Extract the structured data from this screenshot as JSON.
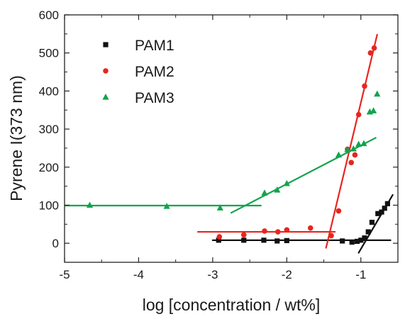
{
  "chart_data": {
    "type": "scatter",
    "title": "",
    "xlabel": "log [concentration / wt%]",
    "ylabel": "Pyrene I(373 nm)",
    "xlim": [
      -5,
      -0.5
    ],
    "ylim": [
      -50,
      600
    ],
    "x_ticks": [
      -5,
      -4,
      -3,
      -2,
      -1
    ],
    "y_ticks": [
      0,
      100,
      200,
      300,
      400,
      500,
      600
    ],
    "x_tick_labels": [
      "-5",
      "-4",
      "-3",
      "-2",
      "-1"
    ],
    "y_tick_labels": [
      "0",
      "100",
      "200",
      "300",
      "400",
      "500",
      "600"
    ],
    "grid": false,
    "legend_position": "top-left",
    "series": [
      {
        "name": "PAM1",
        "color": "#111111",
        "marker": "square",
        "points": [
          [
            -2.92,
            8
          ],
          [
            -2.58,
            8
          ],
          [
            -2.31,
            8
          ],
          [
            -2.13,
            6
          ],
          [
            -2.0,
            7
          ],
          [
            -1.25,
            6
          ],
          [
            -1.12,
            3
          ],
          [
            -1.05,
            5
          ],
          [
            -1.0,
            8
          ],
          [
            -0.95,
            14
          ],
          [
            -0.9,
            30
          ],
          [
            -0.85,
            55
          ],
          [
            -0.77,
            78
          ],
          [
            -0.72,
            82
          ],
          [
            -0.68,
            92
          ],
          [
            -0.64,
            104
          ]
        ],
        "fit_lines": [
          {
            "x": [
              -3.0,
              -0.6
            ],
            "y": [
              8,
              8
            ]
          },
          {
            "x": [
              -1.03,
              -0.57
            ],
            "y": [
              -25,
              127
            ]
          }
        ]
      },
      {
        "name": "PAM2",
        "color": "#e8251f",
        "marker": "circle",
        "points": [
          [
            -2.91,
            17
          ],
          [
            -2.58,
            22
          ],
          [
            -2.3,
            32
          ],
          [
            -2.12,
            30
          ],
          [
            -2.0,
            35
          ],
          [
            -1.68,
            40
          ],
          [
            -1.4,
            20
          ],
          [
            -1.3,
            85
          ],
          [
            -1.18,
            247
          ],
          [
            -1.13,
            212
          ],
          [
            -1.08,
            232
          ],
          [
            -1.03,
            338
          ],
          [
            -0.95,
            413
          ],
          [
            -0.87,
            500
          ],
          [
            -0.82,
            513
          ]
        ],
        "fit_lines": [
          {
            "x": [
              -3.2,
              -1.35
            ],
            "y": [
              30,
              30
            ]
          },
          {
            "x": [
              -1.47,
              -0.78
            ],
            "y": [
              -12,
              548
            ]
          }
        ]
      },
      {
        "name": "PAM3",
        "color": "#13a34d",
        "marker": "triangle",
        "points": [
          [
            -4.66,
            100
          ],
          [
            -3.62,
            97
          ],
          [
            -2.9,
            93
          ],
          [
            -2.3,
            132
          ],
          [
            -2.13,
            140
          ],
          [
            -2.0,
            157
          ],
          [
            -1.3,
            232
          ],
          [
            -1.18,
            246
          ],
          [
            -1.1,
            248
          ],
          [
            -1.03,
            260
          ],
          [
            -0.96,
            262
          ],
          [
            -0.88,
            345
          ],
          [
            -0.83,
            348
          ],
          [
            -0.78,
            392
          ]
        ],
        "fit_lines": [
          {
            "x": [
              -5.0,
              -2.35
            ],
            "y": [
              99,
              99
            ]
          },
          {
            "x": [
              -2.75,
              -0.8
            ],
            "y": [
              80,
              277
            ]
          }
        ]
      }
    ]
  }
}
